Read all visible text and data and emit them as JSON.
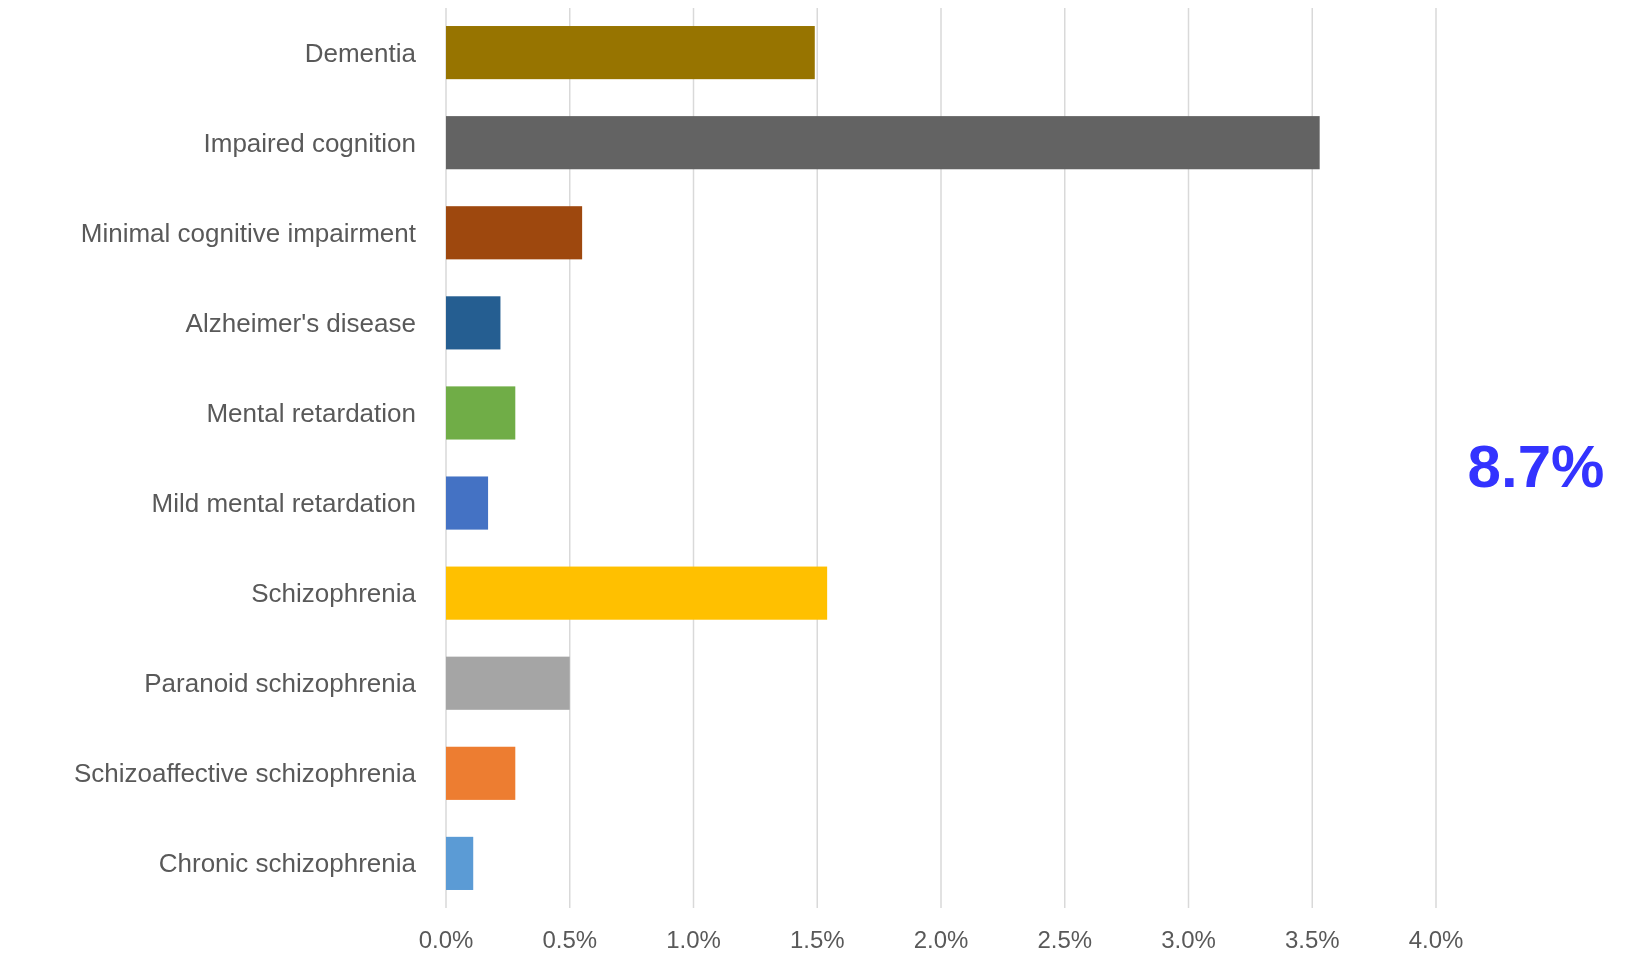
{
  "chart_data": {
    "type": "bar",
    "orientation": "horizontal",
    "categories": [
      "Dementia",
      "Impaired cognition",
      "Minimal cognitive impairment",
      "Alzheimer's disease",
      "Mental retardation",
      "Mild mental retardation",
      "Schizophrenia",
      "Paranoid schizophrenia",
      "Schizoaffective schizophrenia",
      "Chronic schizophrenia"
    ],
    "values": [
      1.49,
      3.53,
      0.55,
      0.22,
      0.28,
      0.17,
      1.54,
      0.5,
      0.28,
      0.11
    ],
    "colors": [
      "#977400",
      "#636363",
      "#9e480e",
      "#255e91",
      "#70ad47",
      "#4472c4",
      "#ffc000",
      "#a5a5a5",
      "#ed7d31",
      "#5b9bd5"
    ],
    "xlim": [
      0,
      4
    ],
    "xticks": [
      {
        "value": 0,
        "label": "0.0%"
      },
      {
        "value": 0.5,
        "label": "0.5%"
      },
      {
        "value": 1,
        "label": "1.0%"
      },
      {
        "value": 1.5,
        "label": "1.5%"
      },
      {
        "value": 2,
        "label": "2.0%"
      },
      {
        "value": 2.5,
        "label": "2.5%"
      },
      {
        "value": 3,
        "label": "3.0%"
      },
      {
        "value": 3.5,
        "label": "3.5%"
      },
      {
        "value": 4,
        "label": "4.0%"
      }
    ],
    "grid": "x",
    "annotations": [
      "8.7%"
    ]
  }
}
